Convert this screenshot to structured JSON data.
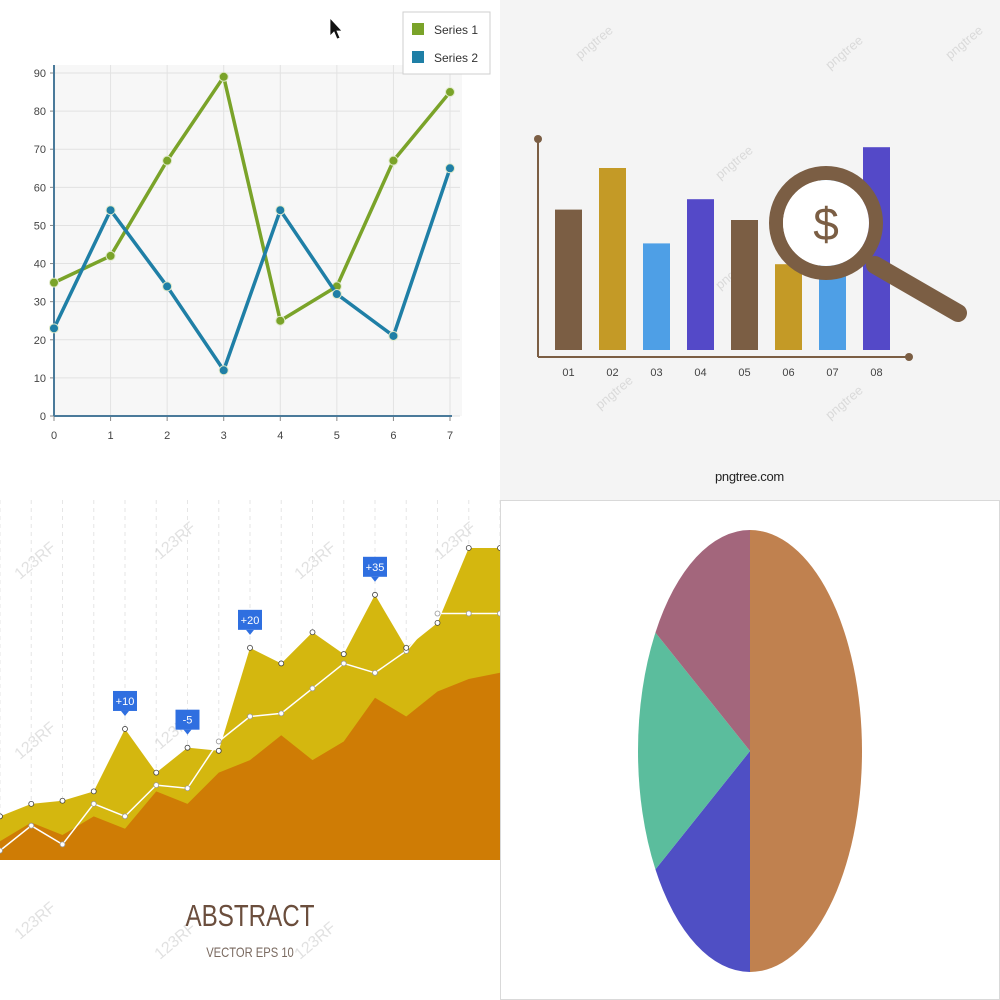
{
  "chart_data": [
    {
      "type": "line",
      "x": [
        0,
        1,
        2,
        3,
        4,
        5,
        6,
        7
      ],
      "ylim": [
        0,
        90
      ],
      "y_ticks": [
        0,
        10,
        20,
        30,
        40,
        50,
        60,
        70,
        80,
        90
      ],
      "grid": true,
      "legend_position": "top-right",
      "series": [
        {
          "name": "Series 1",
          "color": "#7aa329",
          "values": [
            35,
            42,
            67,
            89,
            25,
            34,
            67,
            85
          ]
        },
        {
          "name": "Series 2",
          "color": "#1f7fa6",
          "values": [
            23,
            54,
            34,
            12,
            54,
            32,
            21,
            65
          ]
        }
      ]
    },
    {
      "type": "bar",
      "categories": [
        "01",
        "02",
        "03",
        "04",
        "05",
        "06",
        "07",
        "08"
      ],
      "values": [
        54,
        70,
        41,
        58,
        50,
        33,
        66,
        78
      ],
      "colors": [
        "#7b5e44",
        "#c49a26",
        "#4e9fe6",
        "#5449c8",
        "#7b5e44",
        "#c49a26",
        "#4e9fe6",
        "#5449c8"
      ],
      "ylim": [
        0,
        100
      ],
      "icon": "magnifier-dollar-icon",
      "site_text": "pngtree.com",
      "watermark": "pngtree"
    },
    {
      "type": "area",
      "title": "ABSTRACT",
      "subtitle": "VECTOR EPS 10",
      "watermark": "123RF",
      "series": [
        {
          "color": "#d4b70f",
          "values": [
            14,
            18,
            19,
            22,
            42,
            28,
            36,
            35,
            68,
            63,
            73,
            66,
            85,
            68,
            76,
            100,
            100
          ]
        },
        {
          "color": "#cf7c05",
          "values": [
            6,
            12,
            8,
            14,
            10,
            22,
            18,
            28,
            32,
            40,
            32,
            38,
            52,
            46,
            54,
            58,
            60
          ]
        }
      ],
      "line": {
        "color": "#ffffff",
        "values": [
          3,
          11,
          5,
          18,
          14,
          24,
          23,
          38,
          46,
          47,
          55,
          63,
          60,
          67,
          79,
          79,
          79
        ]
      },
      "callouts": [
        {
          "label": "+10",
          "index": 4
        },
        {
          "label": "-5",
          "index": 6
        },
        {
          "label": "+20",
          "index": 8
        },
        {
          "label": "+35",
          "index": 12
        }
      ]
    },
    {
      "type": "pie",
      "slices": [
        {
          "value": 50,
          "color": "#c0814f"
        },
        {
          "value": 16,
          "color": "#4f4fc4"
        },
        {
          "value": 18,
          "color": "#5bbd9d"
        },
        {
          "value": 16,
          "color": "#a3667c"
        }
      ]
    }
  ]
}
